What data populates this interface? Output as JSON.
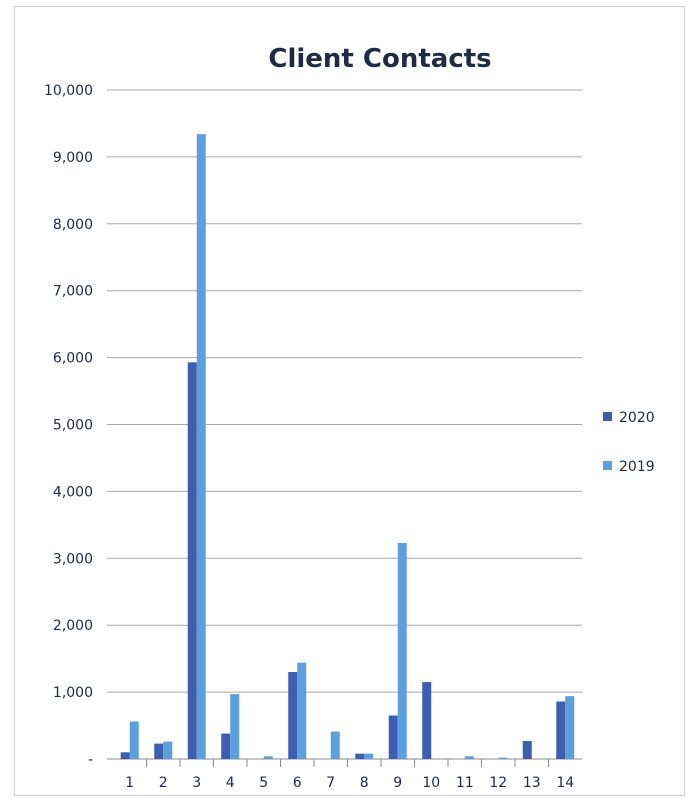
{
  "chart_data": {
    "type": "bar",
    "title": "Client Contacts",
    "xlabel": "",
    "ylabel": "",
    "categories": [
      "1",
      "2",
      "3",
      "4",
      "5",
      "6",
      "7",
      "8",
      "9",
      "10",
      "11",
      "12",
      "13",
      "14"
    ],
    "series": [
      {
        "name": "2020",
        "color": "#3e5fb0",
        "values": [
          100,
          230,
          5930,
          380,
          0,
          1300,
          0,
          80,
          650,
          1150,
          0,
          0,
          270,
          860
        ]
      },
      {
        "name": "2019",
        "color": "#5b9fdc",
        "values": [
          560,
          260,
          9340,
          970,
          40,
          1440,
          410,
          80,
          3230,
          0,
          40,
          20,
          0,
          940
        ]
      }
    ],
    "ylim": [
      0,
      10000
    ],
    "yticks": [
      "-",
      "1,000",
      "2,000",
      "3,000",
      "4,000",
      "5,000",
      "6,000",
      "7,000",
      "8,000",
      "9,000",
      "10,000"
    ],
    "grid": true,
    "legend_position": "right"
  }
}
